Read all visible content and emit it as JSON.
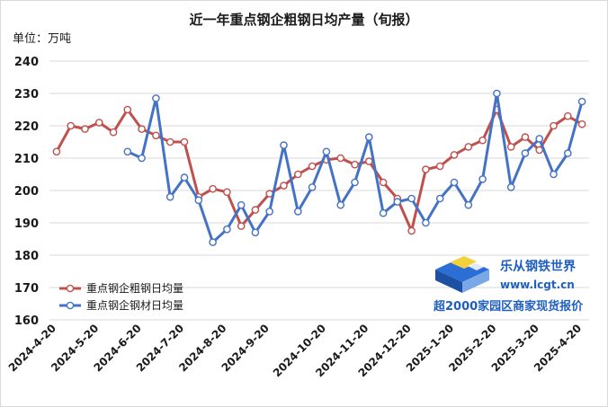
{
  "chart_data": {
    "type": "line",
    "title": "近一年重点钢企粗钢日均产量（旬报）",
    "unit_label": "单位：万吨",
    "ylim": [
      160,
      240
    ],
    "yticks": [
      160,
      170,
      180,
      190,
      200,
      210,
      220,
      230,
      240
    ],
    "grid": "horizontal",
    "legend_position": "bottom-left",
    "x_tick_labels": [
      "2024-4-20",
      "2024-5-20",
      "2024-6-20",
      "2024-7-20",
      "2024-8-20",
      "2024-9-20",
      "2024-10-20",
      "2024-11-20",
      "2024-12-20",
      "2025-1-20",
      "2025-2-20",
      "2025-3-20",
      "2025-4-20"
    ],
    "series": [
      {
        "name": "重点钢企粗钢日均量",
        "color": "#c0504d",
        "values": [
          212,
          220,
          219,
          221,
          218,
          225,
          219,
          217,
          215,
          215,
          198,
          200.5,
          199.5,
          189,
          194,
          199,
          201.5,
          205,
          207.5,
          209.5,
          210,
          208,
          209,
          202.5,
          197.5,
          187.5,
          206.5,
          207.5,
          211,
          213.5,
          215.5,
          225,
          213.5,
          216.5,
          212.5,
          220,
          223,
          220.5
        ]
      },
      {
        "name": "重点钢企钢材日均量",
        "color": "#4472c4",
        "values": [
          null,
          null,
          null,
          null,
          null,
          212,
          210,
          228.5,
          198,
          204,
          197,
          184,
          188,
          195.5,
          187,
          193.5,
          214,
          193.5,
          201,
          212,
          195.5,
          202.5,
          216.5,
          193,
          196.5,
          197.5,
          190,
          197.5,
          202.5,
          195.5,
          203.5,
          230,
          201,
          211.5,
          216,
          205,
          211.5,
          227.5
        ]
      }
    ]
  },
  "watermark": {
    "name": "乐从钢铁世界",
    "url": "www.lcgt.cn",
    "slogan": "超2000家园区商家现货报价"
  }
}
